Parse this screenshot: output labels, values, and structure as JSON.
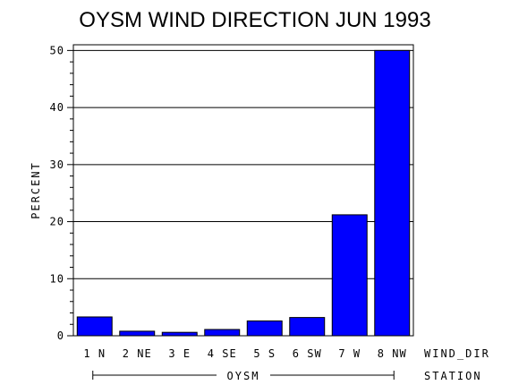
{
  "chart_data": {
    "type": "bar",
    "title": "OYSM WIND DIRECTION JUN 1993",
    "ylabel": "PERCENT",
    "xlabel": "WIND_DIR",
    "group_label": "OYSM",
    "group_axis_label": "STATION",
    "categories": [
      "1 N",
      "2 NE",
      "3 E",
      "4 SE",
      "5 S",
      "6 SW",
      "7 W",
      "8 NW"
    ],
    "values": [
      3.3,
      0.8,
      0.6,
      1.1,
      2.6,
      3.2,
      21.2,
      50.0
    ],
    "ylim": [
      0,
      51
    ],
    "yticks": [
      0,
      10,
      20,
      30,
      40,
      50
    ],
    "ytick_labels": [
      "0",
      "10",
      "20",
      "30",
      "40",
      "50"
    ],
    "grid": true,
    "bar_color": "#0000ff"
  }
}
